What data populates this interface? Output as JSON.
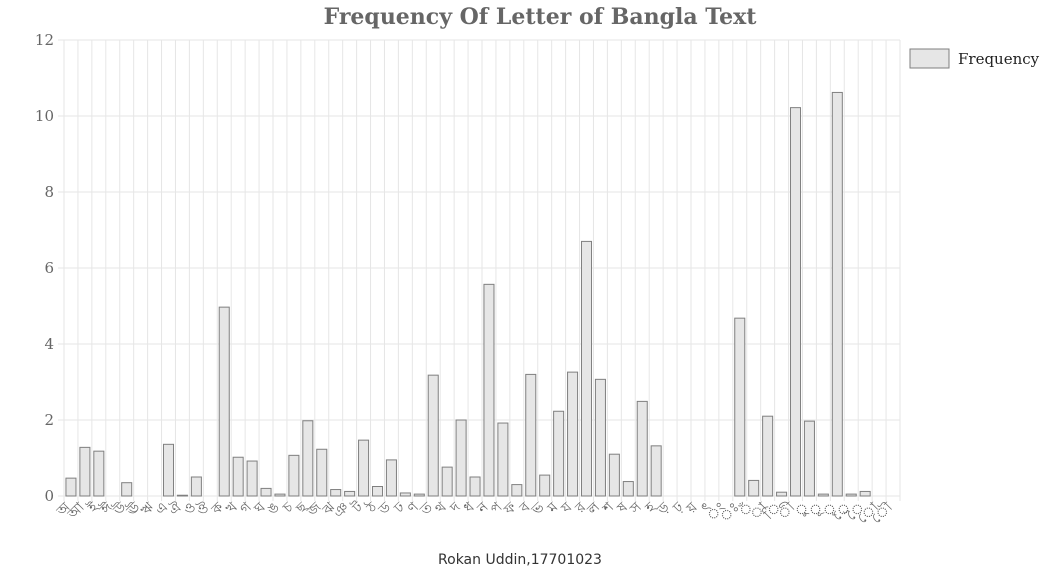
{
  "chart_data": {
    "type": "bar",
    "title": "Frequency Of Letter of Bangla Text",
    "xlabel": "",
    "ylabel": "",
    "ylim": [
      0,
      12
    ],
    "yticks": [
      0,
      2,
      4,
      6,
      8,
      10,
      12
    ],
    "grid": true,
    "legend_position": "top-right",
    "categories": [
      "অ",
      "আ",
      "ই",
      "ঈ",
      "উ",
      "ঊ",
      "ঋ",
      "এ",
      "ঐ",
      "ও",
      "ঔ",
      "ক",
      "খ",
      "গ",
      "ঘ",
      "ঙ",
      "চ",
      "ছ",
      "জ",
      "ঝ",
      "ঞ",
      "ট",
      "ঠ",
      "ড",
      "ঢ",
      "ণ",
      "ত",
      "থ",
      "দ",
      "ধ",
      "ন",
      "প",
      "ফ",
      "ব",
      "ভ",
      "ম",
      "য",
      "র",
      "ল",
      "শ",
      "ষ",
      "স",
      "হ",
      "ড়",
      "ঢ়",
      "য়",
      "ৎ",
      "ং",
      "ঃ",
      "ঁ",
      "া",
      "ি",
      "ী",
      "ু",
      "ূ",
      "ৃ",
      "ে",
      "ৈ",
      "ো",
      "ৌ"
    ],
    "series": [
      {
        "name": "Frequency",
        "values": [
          0.47,
          1.28,
          1.18,
          0,
          0.35,
          0,
          0,
          1.36,
          0.02,
          0.5,
          0,
          4.97,
          1.02,
          0.92,
          0.2,
          0.05,
          1.07,
          1.98,
          1.23,
          0.17,
          0.12,
          1.47,
          0.25,
          0.95,
          0.08,
          0.05,
          3.18,
          0.76,
          2.0,
          0.5,
          5.57,
          1.92,
          0.3,
          3.2,
          0.55,
          2.23,
          3.26,
          6.7,
          3.07,
          1.1,
          0.38,
          2.49,
          1.32,
          0,
          0,
          0,
          0,
          0,
          4.68,
          0.41,
          2.1,
          0.1,
          10.22,
          1.97,
          0.05,
          10.62,
          0.05,
          0.12,
          0,
          0
        ]
      }
    ],
    "colors": {
      "bar_fill": "#e6e6e6",
      "bar_stroke": "#7f7f7f",
      "grid": "#e6e6e6",
      "axis": "#666666"
    }
  },
  "footer": {
    "text": "Rokan Uddin,17701023"
  }
}
